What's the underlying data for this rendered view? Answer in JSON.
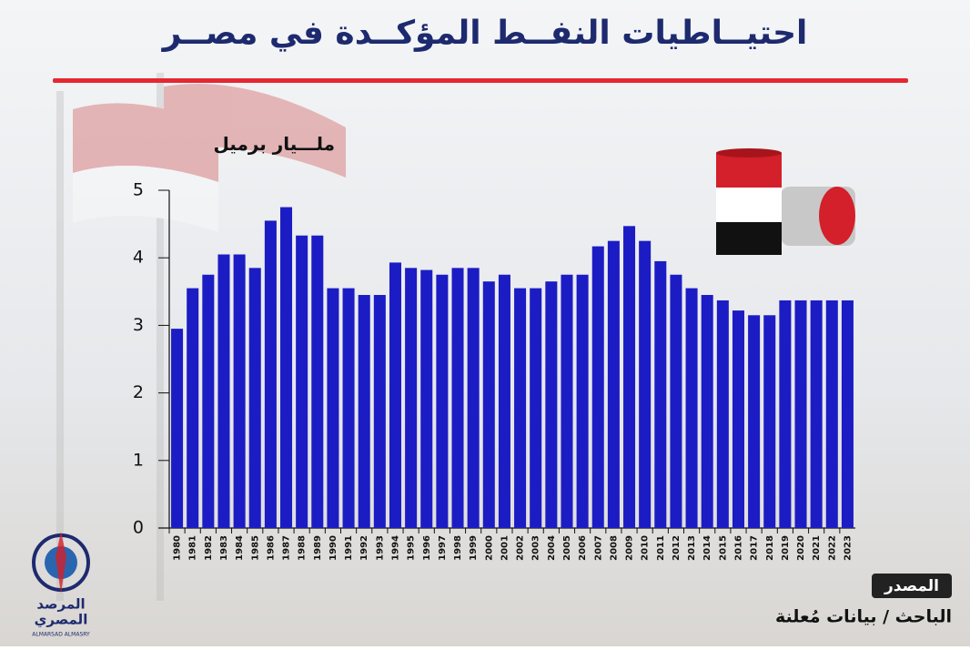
{
  "chart_data": {
    "type": "bar",
    "title": "احتيــاطيات النفــط المؤكــدة في مصــر",
    "y_label": "ملـــيار برميل",
    "categories": [
      "1980",
      "1981",
      "1982",
      "1983",
      "1984",
      "1985",
      "1986",
      "1987",
      "1988",
      "1989",
      "1990",
      "1991",
      "1992",
      "1993",
      "1994",
      "1995",
      "1996",
      "1997",
      "1998",
      "1999",
      "2000",
      "2001",
      "2002",
      "2003",
      "2004",
      "2005",
      "2006",
      "2007",
      "2008",
      "2009",
      "2010",
      "2011",
      "2012",
      "2013",
      "2014",
      "2015",
      "2016",
      "2017",
      "2018",
      "2019",
      "2020",
      "2021",
      "2022",
      "2023"
    ],
    "values": [
      2.95,
      3.55,
      3.75,
      4.05,
      4.05,
      3.85,
      4.55,
      4.75,
      4.33,
      4.33,
      3.55,
      3.55,
      3.45,
      3.45,
      3.93,
      3.85,
      3.82,
      3.75,
      3.85,
      3.85,
      3.65,
      3.75,
      3.55,
      3.55,
      3.65,
      3.75,
      3.75,
      4.17,
      4.25,
      4.47,
      4.25,
      3.95,
      3.75,
      3.55,
      3.45,
      3.37,
      3.22,
      3.15,
      3.15,
      3.37,
      3.37,
      3.37,
      3.37,
      3.37
    ],
    "color": "#1c1cc4",
    "ylim": [
      0,
      5
    ],
    "yticks": [
      0,
      1,
      2,
      3,
      4,
      5
    ],
    "grid": false,
    "source_label": "المصدر",
    "source_text": "الباحث / بيانات مُعلنة"
  },
  "logo": {
    "line1": "المرصد",
    "line2": "المصري",
    "latin": "ALMARSAD ALMASRY"
  }
}
